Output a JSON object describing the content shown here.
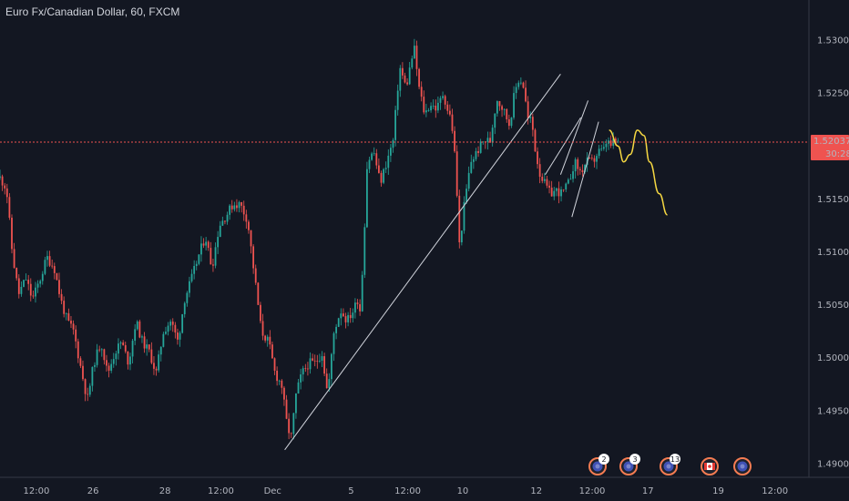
{
  "header": {
    "title": "Euro Fx/Canadian Dollar, 60, FXCM"
  },
  "price_tag": {
    "price": "1.52037",
    "countdown": "30:28",
    "color": "#ef5350"
  },
  "events": [
    {
      "badge": "2",
      "icon": "event-flag-icon"
    },
    {
      "badge": "3",
      "icon": "event-flag-icon"
    },
    {
      "badge": "13",
      "icon": "event-flag-icon"
    },
    {
      "badge": "",
      "icon": "canada-flag-icon"
    },
    {
      "badge": "",
      "icon": "event-flag-icon"
    }
  ],
  "colors": {
    "background": "#131722",
    "up_candle": "#26a69a",
    "down_candle": "#ef5350",
    "trendline": "#d1d4dc",
    "projection": "#f5d742",
    "current_price_line": "#ef5350"
  },
  "chart_data": {
    "type": "candlestick",
    "title": "Euro Fx/Canadian Dollar, 60, FXCM",
    "y_ticks": [
      1.53,
      1.525,
      1.52,
      1.515,
      1.51,
      1.505,
      1.5,
      1.495,
      1.49
    ],
    "y_tick_labels": [
      "1.53000",
      "1.52500",
      "1.52000",
      "1.51500",
      "1.51000",
      "1.50500",
      "1.50000",
      "1.49500",
      "1.49000"
    ],
    "ylim": [
      1.4887,
      1.5338
    ],
    "x_tick_labels": [
      "12:00",
      "26",
      "28",
      "12:00",
      "Dec",
      "5",
      "12:00",
      "10",
      "12",
      "12:00",
      "17",
      "19",
      "12:00"
    ],
    "xlim": [
      0,
      100
    ],
    "x_tick_positions": [
      4.5,
      11.5,
      20.4,
      27.3,
      33.7,
      43.4,
      50.4,
      57.2,
      66.3,
      73.2,
      80.1,
      88.8,
      95.8
    ],
    "current_price": 1.52037,
    "price_path": [
      [
        0,
        1.517
      ],
      [
        0.8,
        1.516
      ],
      [
        1.5,
        1.51
      ],
      [
        2.3,
        1.506
      ],
      [
        3.2,
        1.5075
      ],
      [
        4,
        1.5055
      ],
      [
        5,
        1.5075
      ],
      [
        5.8,
        1.5095
      ],
      [
        6.7,
        1.5085
      ],
      [
        7.5,
        1.5055
      ],
      [
        8.3,
        1.5035
      ],
      [
        9.1,
        1.5025
      ],
      [
        10,
        1.499
      ],
      [
        10.8,
        1.496
      ],
      [
        11.6,
        1.4995
      ],
      [
        12.5,
        1.5015
      ],
      [
        13.3,
        1.4985
      ],
      [
        14.2,
        1.5005
      ],
      [
        15,
        1.5015
      ],
      [
        15.9,
        1.4995
      ],
      [
        16.8,
        1.5035
      ],
      [
        17.6,
        1.5015
      ],
      [
        18.5,
        1.5005
      ],
      [
        19.3,
        1.4985
      ],
      [
        20.2,
        1.5025
      ],
      [
        21.1,
        1.5035
      ],
      [
        22,
        1.5015
      ],
      [
        22.8,
        1.5055
      ],
      [
        23.7,
        1.5075
      ],
      [
        24.5,
        1.5095
      ],
      [
        25.4,
        1.5115
      ],
      [
        26.2,
        1.5085
      ],
      [
        27.1,
        1.5125
      ],
      [
        28,
        1.5135
      ],
      [
        28.8,
        1.5145
      ],
      [
        29.7,
        1.5145
      ],
      [
        30.6,
        1.513
      ],
      [
        31.5,
        1.5075
      ],
      [
        32.3,
        1.5025
      ],
      [
        33.2,
        1.5015
      ],
      [
        34,
        1.4985
      ],
      [
        34.8,
        1.4975
      ],
      [
        35.5,
        1.4935
      ],
      [
        36,
        1.4925
      ],
      [
        36.6,
        1.4965
      ],
      [
        37.3,
        1.4985
      ],
      [
        38.2,
        1.4995
      ],
      [
        39,
        1.4995
      ],
      [
        39.8,
        1.5005
      ],
      [
        40.5,
        1.4965
      ],
      [
        41.3,
        1.5025
      ],
      [
        42.1,
        1.5045
      ],
      [
        42.9,
        1.5035
      ],
      [
        43.7,
        1.5045
      ],
      [
        44.2,
        1.5055
      ],
      [
        44.5,
        1.5045
      ],
      [
        44.9,
        1.5095
      ],
      [
        45.4,
        1.5185
      ],
      [
        46.2,
        1.5195
      ],
      [
        47,
        1.5165
      ],
      [
        47.8,
        1.5185
      ],
      [
        48.6,
        1.5205
      ],
      [
        49.4,
        1.5275
      ],
      [
        50.2,
        1.5255
      ],
      [
        50.7,
        1.5275
      ],
      [
        51.2,
        1.5293
      ],
      [
        51.8,
        1.5255
      ],
      [
        52.5,
        1.523
      ],
      [
        53.2,
        1.524
      ],
      [
        54,
        1.5235
      ],
      [
        54.8,
        1.525
      ],
      [
        55.3,
        1.5235
      ],
      [
        55.8,
        1.5225
      ],
      [
        56.3,
        1.5185
      ],
      [
        56.8,
        1.5105
      ],
      [
        57.4,
        1.5145
      ],
      [
        58.2,
        1.5185
      ],
      [
        59,
        1.5195
      ],
      [
        59.8,
        1.5205
      ],
      [
        60.6,
        1.5205
      ],
      [
        61.4,
        1.5245
      ],
      [
        62.2,
        1.5235
      ],
      [
        63,
        1.522
      ],
      [
        63.6,
        1.525
      ],
      [
        64.2,
        1.5265
      ],
      [
        64.8,
        1.5255
      ],
      [
        65.2,
        1.5225
      ],
      [
        65.7,
        1.5225
      ],
      [
        66.2,
        1.5195
      ],
      [
        66.7,
        1.5175
      ],
      [
        67.3,
        1.5165
      ],
      [
        68,
        1.5155
      ],
      [
        68.8,
        1.5158
      ],
      [
        69.5,
        1.5155
      ],
      [
        70.3,
        1.5165
      ],
      [
        71,
        1.5185
      ],
      [
        71.8,
        1.5175
      ],
      [
        72.5,
        1.5185
      ],
      [
        73.3,
        1.5185
      ],
      [
        74,
        1.5195
      ],
      [
        74.6,
        1.5195
      ],
      [
        75,
        1.5205
      ],
      [
        75.5,
        1.52
      ],
      [
        76,
        1.5205
      ],
      [
        76.4,
        1.52037
      ]
    ],
    "annotations": {
      "trendlines": [
        [
          [
            35.2,
            1.4913
          ],
          [
            69.3,
            1.5268
          ]
        ],
        [
          [
            69.3,
            1.5173
          ],
          [
            72.7,
            1.5243
          ]
        ],
        [
          [
            67.4,
            1.5173
          ],
          [
            71.8,
            1.5227
          ]
        ],
        [
          [
            70.7,
            1.5133
          ],
          [
            74,
            1.5223
          ]
        ]
      ],
      "projection": [
        [
          75.3,
          1.5215
        ],
        [
          76.4,
          1.52
        ],
        [
          77.1,
          1.5185
        ],
        [
          77.9,
          1.5192
        ],
        [
          78.8,
          1.5215
        ],
        [
          79.6,
          1.521
        ],
        [
          80.3,
          1.5185
        ],
        [
          81.5,
          1.5155
        ],
        [
          82.5,
          1.5135
        ]
      ]
    }
  }
}
